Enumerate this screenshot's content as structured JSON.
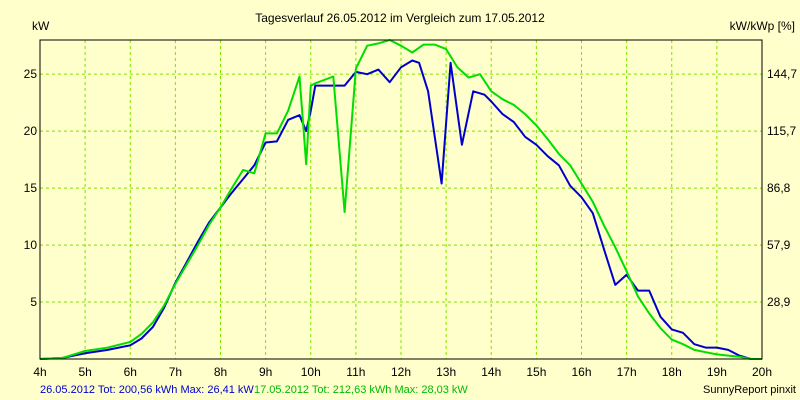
{
  "chart_data": {
    "type": "line",
    "title": "Tagesverlauf 26.05.2012 im Vergleich zum 17.05.2012",
    "ylabel_left": "kW",
    "ylabel_right": "kW/kWp [%]",
    "x_ticks": [
      "4h",
      "5h",
      "6h",
      "7h",
      "8h",
      "9h",
      "10h",
      "11h",
      "12h",
      "13h",
      "14h",
      "15h",
      "16h",
      "17h",
      "18h",
      "19h",
      "20h"
    ],
    "xlim": [
      4,
      20
    ],
    "ylim": [
      0,
      28
    ],
    "y_ticks_left": [
      "5",
      "10",
      "15",
      "20",
      "25"
    ],
    "y_ticks_right": [
      "28,9",
      "57,9",
      "86,8",
      "115,7",
      "144,7"
    ],
    "grid": true,
    "legend": {
      "s1_text": "26.05.2012 Tot: 200,56 kWh Max: 26,41 kW",
      "s2_text": "17.05.2012 Tot: 212,63 kWh Max: 28,03 kW",
      "placement": "bottom-left"
    },
    "credit": "SunnyReport pinxit",
    "colors": {
      "s1": "#0000cc",
      "s2": "#00dd00",
      "grid": "#80e000",
      "background": "#ffffcc"
    },
    "series": [
      {
        "x": [
          4.0,
          4.5,
          5.0,
          5.5,
          6.0,
          6.25,
          6.5,
          6.75,
          7.0,
          7.25,
          7.5,
          7.75,
          8.0,
          8.25,
          8.5,
          8.75,
          9.0,
          9.25,
          9.5,
          9.75,
          9.9,
          10.0,
          10.1,
          10.5,
          10.75,
          11.0,
          11.25,
          11.5,
          11.75,
          12.0,
          12.25,
          12.4,
          12.6,
          12.9,
          13.1,
          13.35,
          13.6,
          13.85,
          14.0,
          14.25,
          14.5,
          14.75,
          15.0,
          15.25,
          15.5,
          15.75,
          16.0,
          16.25,
          16.5,
          16.75,
          17.0,
          17.25,
          17.5,
          17.75,
          18.0,
          18.25,
          18.5,
          18.75,
          19.0,
          19.25,
          19.5,
          19.75,
          20.0
        ],
        "y": [
          0.0,
          0.1,
          0.5,
          0.8,
          1.2,
          1.8,
          2.8,
          4.5,
          6.7,
          8.5,
          10.3,
          12.0,
          13.3,
          14.6,
          15.8,
          17.0,
          19.0,
          19.1,
          21.0,
          21.4,
          20.0,
          21.8,
          24.0,
          24.0,
          24.0,
          25.2,
          25.0,
          25.4,
          24.3,
          25.6,
          26.2,
          26.0,
          23.5,
          15.4,
          26.0,
          18.8,
          23.5,
          23.2,
          22.6,
          21.5,
          20.8,
          19.5,
          18.8,
          17.8,
          17.0,
          15.2,
          14.2,
          12.8,
          9.6,
          6.5,
          7.4,
          6.0,
          6.0,
          3.7,
          2.6,
          2.3,
          1.3,
          1.0,
          1.0,
          0.8,
          0.3,
          0.0,
          0.0
        ]
      },
      {
        "x": [
          4.0,
          4.5,
          5.0,
          5.5,
          6.0,
          6.25,
          6.5,
          6.75,
          7.0,
          7.25,
          7.5,
          7.75,
          8.0,
          8.25,
          8.5,
          8.75,
          9.0,
          9.25,
          9.5,
          9.75,
          9.9,
          10.0,
          10.1,
          10.5,
          10.75,
          11.0,
          11.25,
          11.5,
          11.75,
          12.0,
          12.25,
          12.5,
          12.75,
          13.0,
          13.25,
          13.5,
          13.75,
          14.0,
          14.25,
          14.5,
          14.75,
          15.0,
          15.25,
          15.5,
          15.75,
          16.0,
          16.25,
          16.5,
          16.75,
          17.0,
          17.25,
          17.5,
          17.75,
          18.0,
          18.25,
          18.5,
          18.75,
          19.0,
          19.25,
          19.5,
          19.75,
          20.0
        ],
        "y": [
          0.0,
          0.1,
          0.7,
          1.0,
          1.5,
          2.2,
          3.2,
          4.7,
          6.6,
          8.3,
          10.0,
          11.8,
          13.3,
          15.0,
          16.6,
          16.3,
          19.8,
          19.8,
          21.8,
          24.8,
          17.1,
          24.0,
          24.2,
          24.8,
          12.9,
          25.5,
          27.5,
          27.7,
          28.0,
          27.5,
          26.9,
          27.6,
          27.6,
          27.2,
          25.6,
          24.7,
          25.0,
          23.5,
          22.8,
          22.3,
          21.5,
          20.5,
          19.3,
          18.0,
          17.0,
          15.4,
          13.8,
          11.7,
          9.8,
          7.7,
          5.5,
          4.0,
          2.7,
          1.7,
          1.3,
          0.8,
          0.6,
          0.4,
          0.3,
          0.2,
          0.0,
          0.0
        ]
      }
    ]
  }
}
